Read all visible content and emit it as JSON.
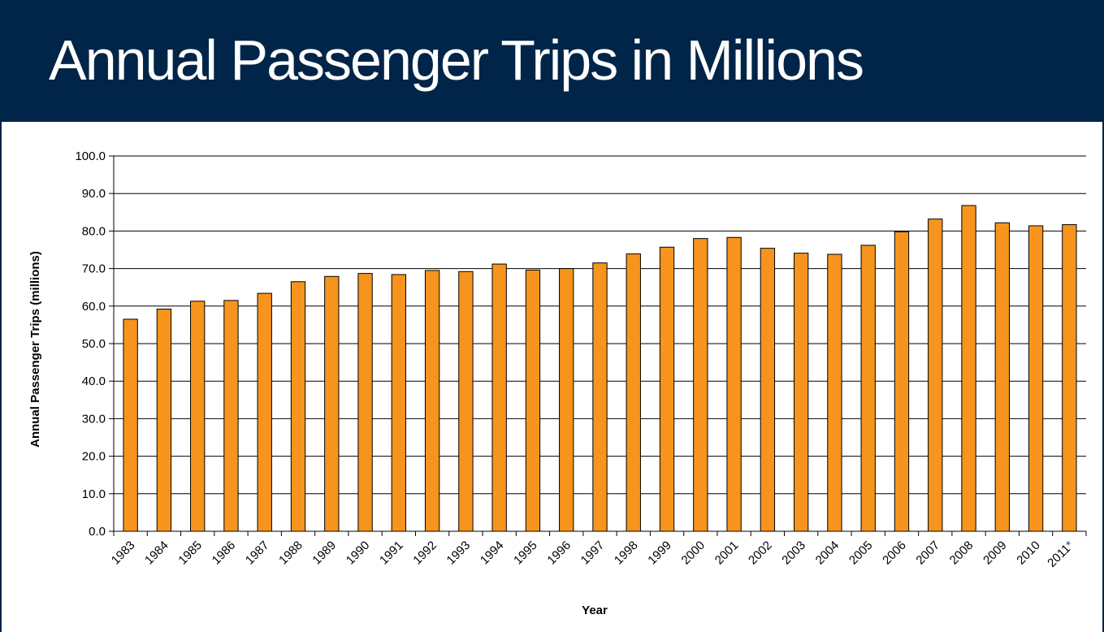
{
  "header": {
    "title": "Annual Passenger Trips in Millions"
  },
  "colors": {
    "header_bg": "#002548",
    "bar_fill": "#F7941D",
    "bar_stroke": "#000000",
    "asterisk": "#1F4E79"
  },
  "chart_data": {
    "type": "bar",
    "xlabel": "Year",
    "ylabel": "Annual Passenger Trips (millions)",
    "ylim": [
      0,
      100
    ],
    "ytick_step": 10,
    "ytick_decimals": 1,
    "grid": true,
    "categories": [
      "1983",
      "1984",
      "1985",
      "1986",
      "1987",
      "1988",
      "1989",
      "1990",
      "1991",
      "1992",
      "1993",
      "1994",
      "1995",
      "1996",
      "1997",
      "1998",
      "1999",
      "2000",
      "2001",
      "2002",
      "2003",
      "2004",
      "2005",
      "2006",
      "2007",
      "2008",
      "2009",
      "2010",
      "2011"
    ],
    "category_suffix": {
      "2011": "*"
    },
    "values": [
      56.5,
      59.2,
      61.3,
      61.5,
      63.4,
      66.5,
      67.9,
      68.7,
      68.4,
      69.5,
      69.2,
      71.2,
      69.6,
      70.0,
      71.5,
      73.9,
      75.7,
      78.0,
      78.3,
      75.4,
      74.1,
      73.8,
      76.2,
      79.8,
      83.2,
      86.8,
      82.2,
      81.4,
      81.7
    ]
  }
}
